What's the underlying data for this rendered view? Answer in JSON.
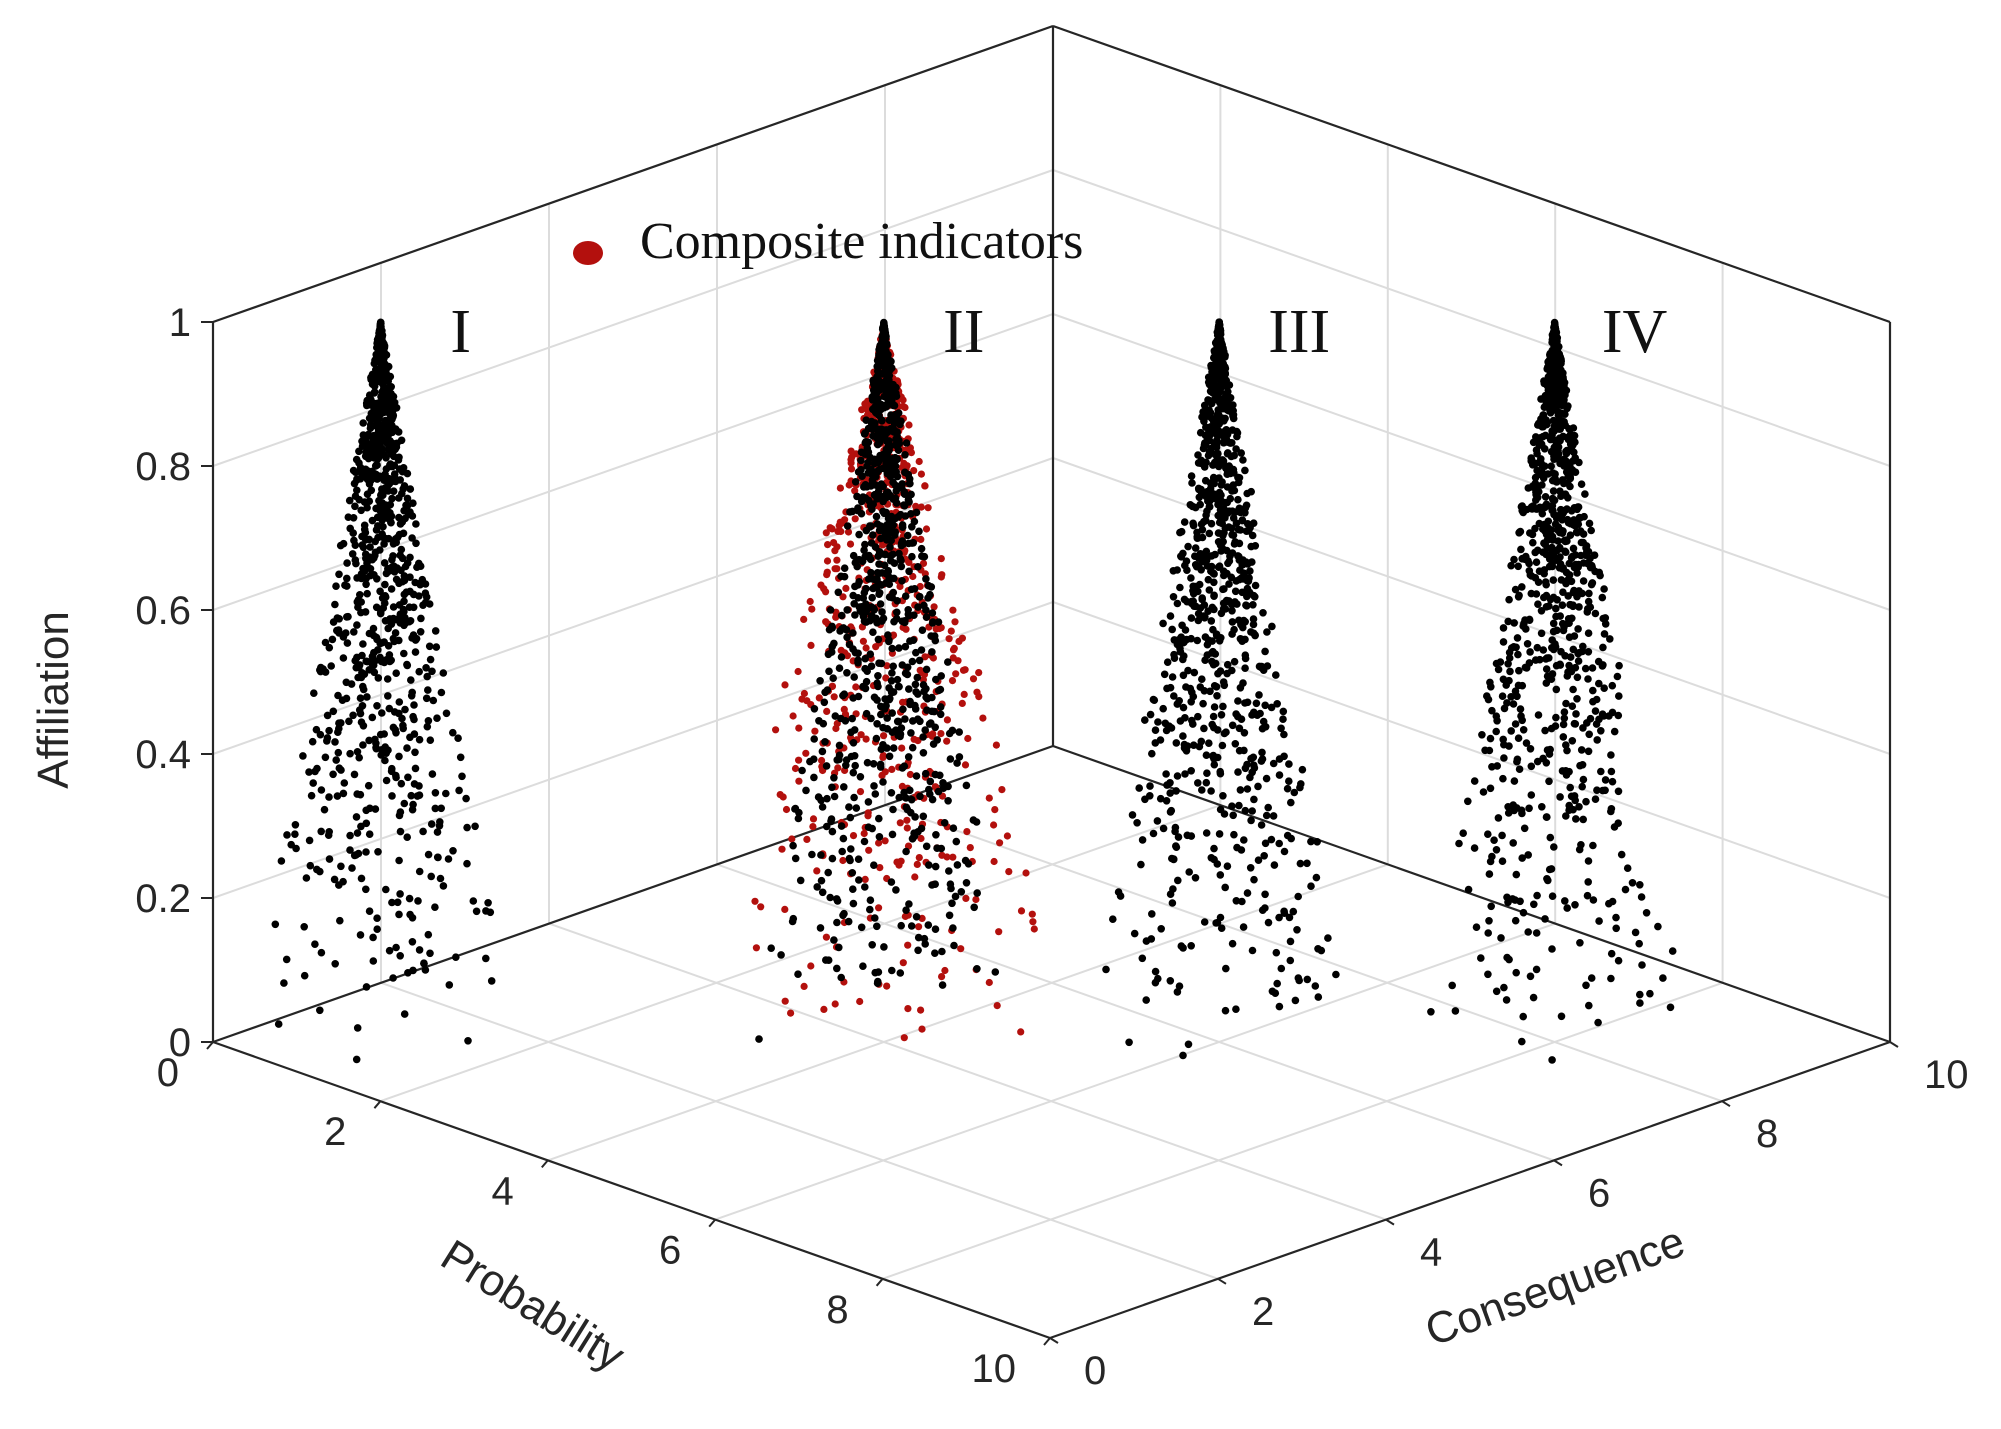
{
  "chart_data": {
    "type": "scatter",
    "title": "",
    "projection": "3d",
    "xlabel": "Probability",
    "ylabel": "Consequence",
    "zlabel": "Affiliation",
    "xlim": [
      0,
      10
    ],
    "ylim": [
      0,
      10
    ],
    "zlim": [
      0,
      1
    ],
    "xticks": [
      "0",
      "2",
      "4",
      "6",
      "8",
      "10"
    ],
    "yticks": [
      "0",
      "2",
      "4",
      "6",
      "8",
      "10"
    ],
    "zticks": [
      "0",
      "0.2",
      "0.4",
      "0.6",
      "0.8",
      "1"
    ],
    "grid": true,
    "legend": {
      "position": "top-center",
      "entries": [
        "Composite indicators"
      ]
    },
    "colors": {
      "grade_points": "#000000",
      "composite": "#b3100d",
      "axis": "#262626",
      "grid": "#dcdcdc"
    },
    "grades": [
      {
        "label": "I",
        "center": [
          1.0,
          1.0
        ],
        "spread": 1.0,
        "peak": 1.0,
        "points": 900
      },
      {
        "label": "II",
        "center": [
          4.0,
          4.0
        ],
        "spread": 1.0,
        "peak": 1.0,
        "points": 900
      },
      {
        "label": "III",
        "center": [
          6.0,
          6.0
        ],
        "spread": 1.0,
        "peak": 1.0,
        "points": 900
      },
      {
        "label": "IV",
        "center": [
          8.0,
          8.0
        ],
        "spread": 1.0,
        "peak": 1.0,
        "points": 900
      }
    ],
    "series": [
      {
        "name": "Composite indicators",
        "center": [
          4.1,
          3.9
        ],
        "spread": 1.5,
        "peak": 1.0,
        "points": 700
      }
    ]
  }
}
